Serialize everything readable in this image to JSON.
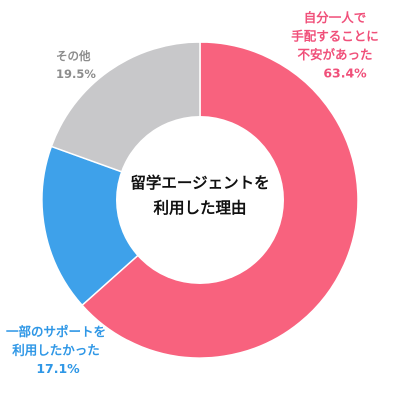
{
  "chart_data": {
    "type": "pie",
    "donut": true,
    "center_label": [
      "留学エージェントを",
      "利用した理由"
    ],
    "slices": [
      {
        "label": [
          "自分一人で",
          "手配することに",
          "不安があった"
        ],
        "value": 63.4,
        "value_text": "63.4%",
        "color": "#f8627e"
      },
      {
        "label": [
          "一部のサポートを",
          "利用したかった"
        ],
        "value": 17.1,
        "value_text": "17.1%",
        "color": "#3ea1ea"
      },
      {
        "label": [
          "その他"
        ],
        "value": 19.5,
        "value_text": "19.5%",
        "color": "#c8c8ca"
      }
    ],
    "label_colors": [
      "#f0507a",
      "#2f97e6",
      "#8d8d8d"
    ]
  }
}
